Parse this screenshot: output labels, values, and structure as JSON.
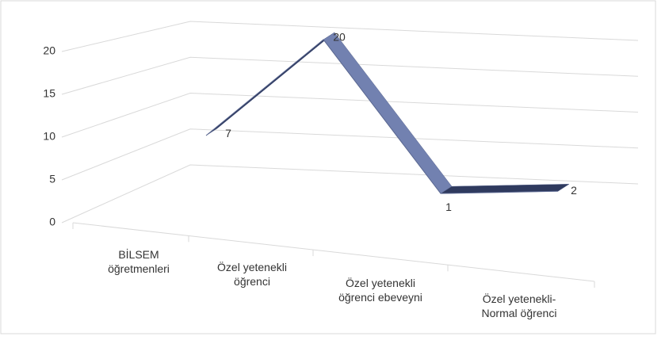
{
  "chart_data": {
    "type": "line3d",
    "categories": [
      "BİLSEM öğretmenleri",
      "Özel yetenekli öğrenci",
      "Özel yetenekli öğrenci ebeveyni",
      "Özel yetenekli-Normal öğrenci"
    ],
    "series": [
      {
        "color": "#7281b0",
        "values": [
          7,
          20,
          1,
          2
        ]
      }
    ],
    "ylim": [
      0,
      20
    ],
    "yticks": [
      0,
      5,
      10,
      15,
      20
    ],
    "grid": true
  }
}
